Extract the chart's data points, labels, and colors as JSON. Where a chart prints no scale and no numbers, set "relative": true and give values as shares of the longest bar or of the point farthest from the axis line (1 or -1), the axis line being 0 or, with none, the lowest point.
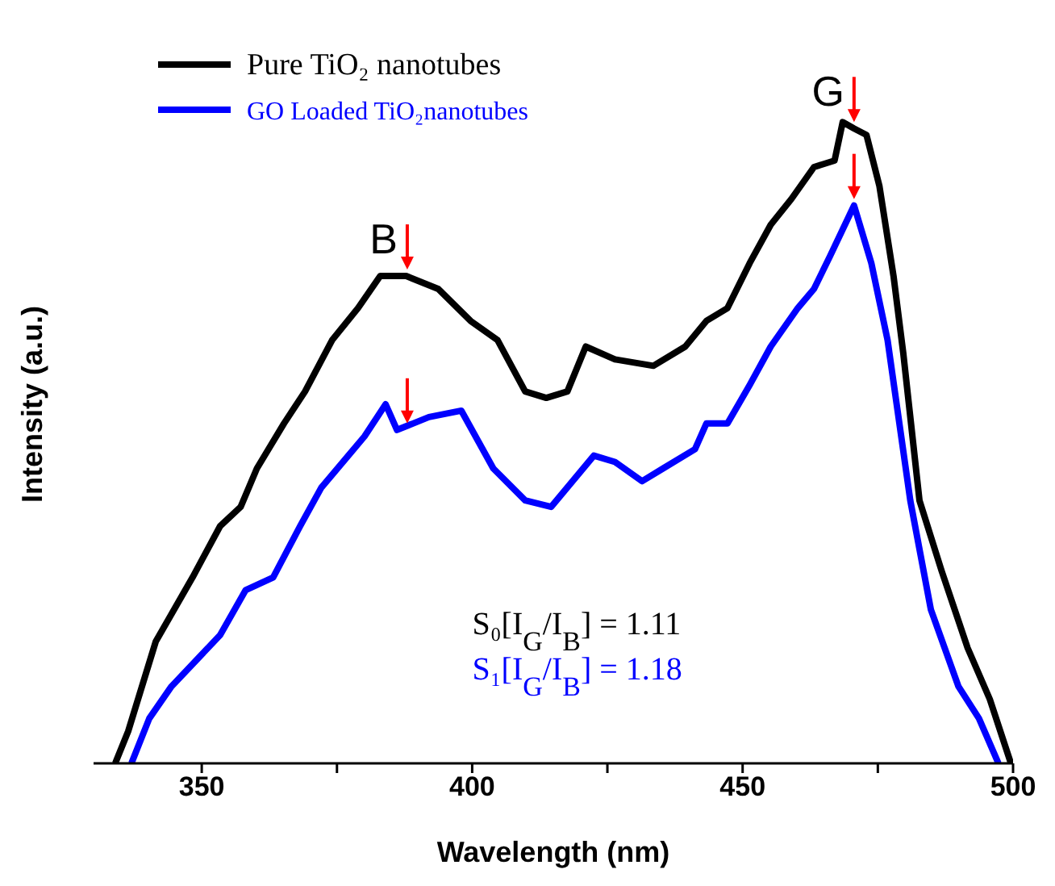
{
  "chart_data": {
    "type": "line",
    "relative": true,
    "xlabel": "Wavelength (nm)",
    "ylabel": "Intensity (a.u.)",
    "xlim": [
      330,
      500
    ],
    "xticks": [
      350,
      {
        "value": 375,
        "label": null
      },
      400,
      {
        "value": 425,
        "label": null
      },
      450,
      {
        "value": 475,
        "label": null
      },
      500
    ],
    "legend": "top left",
    "tick_labels": "x",
    "marker": "none",
    "line_style": "solid",
    "series": [
      {
        "name": "Pure TiO₂ nanotubes",
        "color": "#000000",
        "x": [
          334,
          336.4,
          341.5,
          348.3,
          353.4,
          357.2,
          360.2,
          365.2,
          369.1,
          374.1,
          378.9,
          383,
          387.8,
          393.7,
          399.7,
          404.7,
          409.8,
          413.7,
          417.6,
          421,
          426.4,
          433.5,
          439.4,
          443.3,
          447.2,
          451.3,
          455.2,
          459,
          463.2,
          467,
          468.5,
          470.6,
          472.9,
          475.3,
          477.9,
          479.7,
          482.7,
          486.8,
          491.6,
          495.7,
          499.6
        ],
        "values": [
          0,
          0.05,
          0.19,
          0.29,
          0.37,
          0.4,
          0.46,
          0.53,
          0.58,
          0.66,
          0.71,
          0.76,
          0.76,
          0.74,
          0.69,
          0.66,
          0.58,
          0.57,
          0.58,
          0.65,
          0.63,
          0.62,
          0.65,
          0.69,
          0.71,
          0.78,
          0.84,
          0.88,
          0.93,
          0.94,
          1,
          0.99,
          0.98,
          0.9,
          0.76,
          0.64,
          0.41,
          0.3,
          0.18,
          0.1,
          0
        ]
      },
      {
        "name": "GO Loaded TiO₂nanotubes",
        "color": "#0000ff",
        "x": [
          337,
          340.3,
          344.4,
          353.4,
          358.1,
          363.2,
          368.2,
          372.1,
          377.1,
          380.1,
          384,
          386.1,
          392,
          398,
          403.9,
          409.8,
          414.6,
          415.6,
          422.5,
          426.4,
          431.4,
          435.3,
          441.2,
          443.3,
          447.2,
          451.3,
          455.2,
          460.2,
          463.2,
          466.1,
          470.6,
          473.8,
          476.8,
          481,
          484.8,
          489.9,
          493.7,
          497.3
        ],
        "values": [
          0,
          0.07,
          0.12,
          0.2,
          0.27,
          0.29,
          0.37,
          0.43,
          0.48,
          0.51,
          0.56,
          0.52,
          0.54,
          0.55,
          0.46,
          0.41,
          0.4,
          0.41,
          0.48,
          0.47,
          0.44,
          0.46,
          0.49,
          0.53,
          0.53,
          0.59,
          0.65,
          0.71,
          0.74,
          0.79,
          0.87,
          0.78,
          0.66,
          0.41,
          0.24,
          0.12,
          0.07,
          0
        ]
      }
    ],
    "annotations": [
      {
        "text": "B",
        "x": 388,
        "y": 0.76
      },
      {
        "text": "G",
        "x": 470.6,
        "y": 0.87
      },
      "S₀[I$_{G}$/I$_{B}$] = 1.11",
      "S₁[I$_{G}$/I$_{B}$] = 1.18"
    ]
  }
}
